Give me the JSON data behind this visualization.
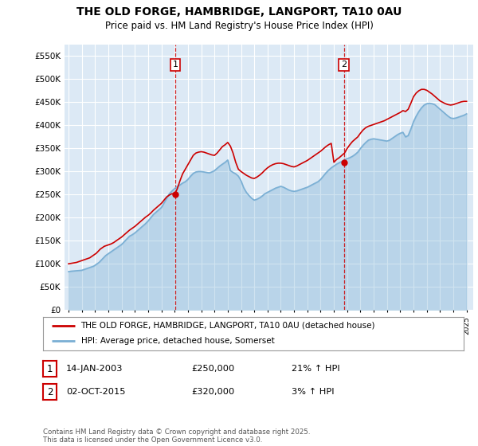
{
  "title": "THE OLD FORGE, HAMBRIDGE, LANGPORT, TA10 0AU",
  "subtitle": "Price paid vs. HM Land Registry's House Price Index (HPI)",
  "background_color": "#ffffff",
  "plot_bg_color": "#dce9f5",
  "grid_color": "#ffffff",
  "red_color": "#cc0000",
  "blue_color": "#7aafd4",
  "vline_color": "#cc0000",
  "legend_label_red": "THE OLD FORGE, HAMBRIDGE, LANGPORT, TA10 0AU (detached house)",
  "legend_label_blue": "HPI: Average price, detached house, Somerset",
  "annotation1_label": "1",
  "annotation1_date": "14-JAN-2003",
  "annotation1_price": "£250,000",
  "annotation1_hpi": "21% ↑ HPI",
  "annotation2_label": "2",
  "annotation2_date": "02-OCT-2015",
  "annotation2_price": "£320,000",
  "annotation2_hpi": "3% ↑ HPI",
  "footer": "Contains HM Land Registry data © Crown copyright and database right 2025.\nThis data is licensed under the Open Government Licence v3.0.",
  "ylim": [
    0,
    575000
  ],
  "yticks": [
    0,
    50000,
    100000,
    150000,
    200000,
    250000,
    300000,
    350000,
    400000,
    450000,
    500000,
    550000
  ],
  "xlim_left": 1994.7,
  "xlim_right": 2025.5,
  "vline1_x": 2003.04,
  "vline2_x": 2015.75,
  "sale1_y": 250000,
  "sale2_y": 320000,
  "hpi_x": [
    1995.0,
    1995.1,
    1995.2,
    1995.3,
    1995.4,
    1995.5,
    1995.6,
    1995.7,
    1995.8,
    1995.9,
    1996.0,
    1996.1,
    1996.2,
    1996.3,
    1996.4,
    1996.5,
    1996.6,
    1996.7,
    1996.8,
    1996.9,
    1997.0,
    1997.1,
    1997.2,
    1997.3,
    1997.4,
    1997.5,
    1997.6,
    1997.7,
    1997.8,
    1997.9,
    1998.0,
    1998.2,
    1998.4,
    1998.6,
    1998.8,
    1999.0,
    1999.2,
    1999.4,
    1999.6,
    1999.8,
    2000.0,
    2000.2,
    2000.4,
    2000.6,
    2000.8,
    2001.0,
    2001.2,
    2001.4,
    2001.6,
    2001.8,
    2002.0,
    2002.2,
    2002.4,
    2002.6,
    2002.8,
    2003.0,
    2003.2,
    2003.4,
    2003.6,
    2003.8,
    2004.0,
    2004.2,
    2004.4,
    2004.6,
    2004.8,
    2005.0,
    2005.2,
    2005.4,
    2005.6,
    2005.8,
    2006.0,
    2006.2,
    2006.4,
    2006.6,
    2006.8,
    2007.0,
    2007.2,
    2007.4,
    2007.6,
    2007.8,
    2008.0,
    2008.2,
    2008.4,
    2008.6,
    2008.8,
    2009.0,
    2009.2,
    2009.4,
    2009.6,
    2009.8,
    2010.0,
    2010.2,
    2010.4,
    2010.6,
    2010.8,
    2011.0,
    2011.2,
    2011.4,
    2011.6,
    2011.8,
    2012.0,
    2012.2,
    2012.4,
    2012.6,
    2012.8,
    2013.0,
    2013.2,
    2013.4,
    2013.6,
    2013.8,
    2014.0,
    2014.2,
    2014.4,
    2014.6,
    2014.8,
    2015.0,
    2015.2,
    2015.4,
    2015.6,
    2015.8,
    2016.0,
    2016.2,
    2016.4,
    2016.6,
    2016.8,
    2017.0,
    2017.2,
    2017.4,
    2017.6,
    2017.8,
    2018.0,
    2018.2,
    2018.4,
    2018.6,
    2018.8,
    2019.0,
    2019.2,
    2019.4,
    2019.6,
    2019.8,
    2020.0,
    2020.2,
    2020.4,
    2020.6,
    2020.8,
    2021.0,
    2021.2,
    2021.4,
    2021.6,
    2021.8,
    2022.0,
    2022.2,
    2022.4,
    2022.6,
    2022.8,
    2023.0,
    2023.2,
    2023.4,
    2023.6,
    2023.8,
    2024.0,
    2024.2,
    2024.4,
    2024.6,
    2024.8,
    2025.0
  ],
  "hpi_y": [
    83000,
    83500,
    84000,
    84200,
    84500,
    84800,
    85000,
    85200,
    85500,
    85800,
    86000,
    87000,
    88000,
    89000,
    90000,
    91000,
    92000,
    93000,
    94000,
    95000,
    97000,
    99000,
    101000,
    103000,
    106000,
    109000,
    112000,
    115000,
    118000,
    120000,
    122000,
    126000,
    130000,
    134000,
    138000,
    142000,
    148000,
    154000,
    160000,
    163000,
    167000,
    172000,
    177000,
    182000,
    187000,
    193000,
    200000,
    207000,
    212000,
    217000,
    222000,
    232000,
    242000,
    252000,
    258000,
    263000,
    268000,
    271000,
    275000,
    278000,
    283000,
    290000,
    296000,
    299000,
    300000,
    300000,
    299000,
    298000,
    297000,
    299000,
    302000,
    307000,
    312000,
    316000,
    320000,
    325000,
    302000,
    298000,
    295000,
    290000,
    280000,
    265000,
    255000,
    248000,
    242000,
    238000,
    240000,
    243000,
    247000,
    252000,
    255000,
    258000,
    261000,
    264000,
    266000,
    268000,
    266000,
    263000,
    260000,
    258000,
    257000,
    258000,
    260000,
    262000,
    264000,
    266000,
    269000,
    272000,
    275000,
    278000,
    283000,
    290000,
    297000,
    303000,
    308000,
    312000,
    316000,
    319000,
    322000,
    325000,
    328000,
    330000,
    333000,
    337000,
    342000,
    350000,
    357000,
    363000,
    368000,
    370000,
    371000,
    370000,
    369000,
    368000,
    367000,
    366000,
    368000,
    372000,
    376000,
    380000,
    383000,
    385000,
    375000,
    378000,
    392000,
    408000,
    420000,
    430000,
    438000,
    444000,
    447000,
    448000,
    447000,
    445000,
    440000,
    435000,
    430000,
    425000,
    420000,
    416000,
    415000,
    416000,
    418000,
    420000,
    422000,
    425000
  ],
  "red_x": [
    1995.0,
    1995.1,
    1995.2,
    1995.3,
    1995.4,
    1995.5,
    1995.6,
    1995.7,
    1995.8,
    1995.9,
    1996.0,
    1996.1,
    1996.2,
    1996.3,
    1996.4,
    1996.5,
    1996.6,
    1996.7,
    1996.8,
    1996.9,
    1997.0,
    1997.1,
    1997.2,
    1997.3,
    1997.4,
    1997.5,
    1997.6,
    1997.7,
    1997.8,
    1997.9,
    1998.0,
    1998.2,
    1998.4,
    1998.6,
    1998.8,
    1999.0,
    1999.2,
    1999.4,
    1999.6,
    1999.8,
    2000.0,
    2000.2,
    2000.4,
    2000.6,
    2000.8,
    2001.0,
    2001.2,
    2001.4,
    2001.6,
    2001.8,
    2002.0,
    2002.2,
    2002.4,
    2002.6,
    2002.8,
    2003.0,
    2003.2,
    2003.4,
    2003.6,
    2003.8,
    2004.0,
    2004.2,
    2004.4,
    2004.6,
    2004.8,
    2005.0,
    2005.2,
    2005.4,
    2005.6,
    2005.8,
    2006.0,
    2006.2,
    2006.4,
    2006.6,
    2006.8,
    2007.0,
    2007.2,
    2007.4,
    2007.6,
    2007.8,
    2008.0,
    2008.2,
    2008.4,
    2008.6,
    2008.8,
    2009.0,
    2009.2,
    2009.4,
    2009.6,
    2009.8,
    2010.0,
    2010.2,
    2010.4,
    2010.6,
    2010.8,
    2011.0,
    2011.2,
    2011.4,
    2011.6,
    2011.8,
    2012.0,
    2012.2,
    2012.4,
    2012.6,
    2012.8,
    2013.0,
    2013.2,
    2013.4,
    2013.6,
    2013.8,
    2014.0,
    2014.2,
    2014.4,
    2014.6,
    2014.8,
    2015.0,
    2015.2,
    2015.4,
    2015.6,
    2015.8,
    2016.0,
    2016.2,
    2016.4,
    2016.6,
    2016.8,
    2017.0,
    2017.2,
    2017.4,
    2017.6,
    2017.8,
    2018.0,
    2018.2,
    2018.4,
    2018.6,
    2018.8,
    2019.0,
    2019.2,
    2019.4,
    2019.6,
    2019.8,
    2020.0,
    2020.2,
    2020.4,
    2020.6,
    2020.8,
    2021.0,
    2021.2,
    2021.4,
    2021.6,
    2021.8,
    2022.0,
    2022.2,
    2022.4,
    2022.6,
    2022.8,
    2023.0,
    2023.2,
    2023.4,
    2023.6,
    2023.8,
    2024.0,
    2024.2,
    2024.4,
    2024.6,
    2024.8,
    2025.0
  ],
  "red_y": [
    100000,
    100500,
    101000,
    101500,
    102000,
    102500,
    103000,
    104000,
    105000,
    106000,
    107000,
    108000,
    109000,
    110000,
    111000,
    112000,
    113000,
    115000,
    117000,
    119000,
    121000,
    123000,
    126000,
    129000,
    132000,
    134000,
    136000,
    138000,
    139000,
    140000,
    141000,
    143000,
    146000,
    150000,
    154000,
    158000,
    163000,
    168000,
    173000,
    177000,
    181000,
    186000,
    191000,
    196000,
    201000,
    205000,
    210000,
    216000,
    221000,
    226000,
    231000,
    238000,
    245000,
    249000,
    252000,
    250000,
    263000,
    280000,
    295000,
    305000,
    315000,
    325000,
    335000,
    340000,
    342000,
    343000,
    342000,
    340000,
    338000,
    336000,
    335000,
    340000,
    347000,
    354000,
    358000,
    363000,
    355000,
    340000,
    320000,
    305000,
    300000,
    296000,
    292000,
    289000,
    286000,
    285000,
    288000,
    292000,
    297000,
    303000,
    308000,
    312000,
    315000,
    317000,
    318000,
    318000,
    317000,
    315000,
    313000,
    311000,
    310000,
    312000,
    315000,
    318000,
    321000,
    324000,
    328000,
    332000,
    336000,
    340000,
    344000,
    349000,
    354000,
    358000,
    361000,
    320000,
    326000,
    330000,
    335000,
    340000,
    350000,
    358000,
    365000,
    370000,
    375000,
    383000,
    390000,
    395000,
    398000,
    400000,
    402000,
    404000,
    406000,
    408000,
    410000,
    413000,
    416000,
    419000,
    422000,
    425000,
    428000,
    432000,
    430000,
    435000,
    448000,
    462000,
    470000,
    475000,
    478000,
    478000,
    476000,
    472000,
    468000,
    463000,
    458000,
    453000,
    450000,
    447000,
    445000,
    444000,
    445000,
    447000,
    449000,
    451000,
    452000,
    452000
  ]
}
